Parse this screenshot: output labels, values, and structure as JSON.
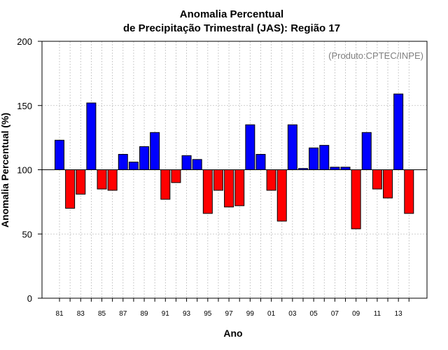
{
  "chart_data": {
    "type": "bar",
    "title": [
      "Anomalia Percentual",
      "de Precipitação Trimestral (JAS): Região 17"
    ],
    "xlabel": "Ano",
    "ylabel": "Anomalia Percentual (%)",
    "credit": "(Produto:CPTEC/INPE)",
    "baseline": 100,
    "ylim": [
      0,
      200
    ],
    "yticks": [
      "0",
      "50",
      "100",
      "150",
      "200"
    ],
    "ytick_values": [
      0,
      50,
      100,
      150,
      200
    ],
    "grid": true,
    "colors": {
      "above": "#0000ff",
      "below": "#ff0000",
      "grid": "#bfbfbf",
      "credit": "#808080"
    },
    "categories": [
      "81",
      "82",
      "83",
      "84",
      "85",
      "86",
      "87",
      "88",
      "89",
      "90",
      "91",
      "92",
      "93",
      "94",
      "95",
      "96",
      "97",
      "98",
      "99",
      "00",
      "01",
      "02",
      "03",
      "04",
      "05",
      "06",
      "07",
      "08",
      "09",
      "10",
      "11",
      "12",
      "13",
      "14"
    ],
    "xtick_labels": [
      "81",
      "83",
      "85",
      "87",
      "89",
      "91",
      "93",
      "95",
      "97",
      "99",
      "01",
      "03",
      "05",
      "07",
      "09",
      "11",
      "13"
    ],
    "values": [
      123,
      70,
      81,
      152,
      85,
      84,
      112,
      106,
      118,
      129,
      77,
      90,
      111,
      108,
      66,
      84,
      71,
      72,
      135,
      112,
      84,
      60,
      135,
      101,
      117,
      119,
      102,
      102,
      54,
      129,
      85,
      78,
      159,
      66
    ]
  }
}
